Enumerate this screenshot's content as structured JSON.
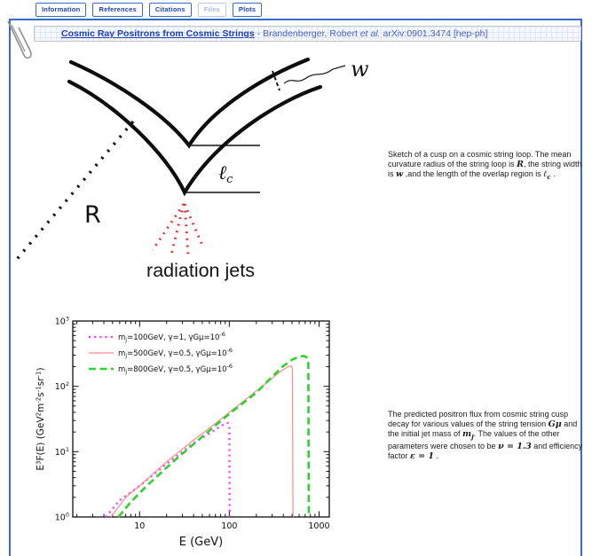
{
  "accent_color": "#3a6bc6",
  "tabs": [
    {
      "label": "Information",
      "state": "normal"
    },
    {
      "label": "References",
      "state": "normal"
    },
    {
      "label": "Citations",
      "state": "normal"
    },
    {
      "label": "Files",
      "state": "disabled"
    },
    {
      "label": "Plots",
      "state": "active"
    }
  ],
  "header": {
    "title_link": "Cosmic Ray Positrons from Cosmic Strings",
    "separator": " - ",
    "authors": "Brandenberger, Robert ",
    "etal": "et al.",
    "identifier": " arXiv:0901.3474 [hep-ph]"
  },
  "figure1": {
    "labels": {
      "R": "R",
      "w": "w",
      "ell": "ℓ",
      "ell_sub": "c",
      "jets": "radiation jets"
    },
    "caption_segments": [
      {
        "t": "Sketch of a cusp on a cosmic string loop. The mean curvature radius of the string loop is "
      },
      {
        "m": "R"
      },
      {
        "t": ", the string width is "
      },
      {
        "m": "w"
      },
      {
        "t": " ,and the length of the overlap region is "
      },
      {
        "m": "ℓ",
        "sub": "c"
      },
      {
        "t": " ."
      }
    ]
  },
  "figure2": {
    "caption_segments": [
      {
        "t": "The predicted positron flux from cosmic string cusp decay for various values of the string tension "
      },
      {
        "m": "Gμ"
      },
      {
        "t": " and the initial jet mass of "
      },
      {
        "m": "m",
        "sub": "j"
      },
      {
        "t": ". The values of the other parameters were chosen to be "
      },
      {
        "m": "ν = 1.3"
      },
      {
        "t": " and efficiency factor "
      },
      {
        "m": "ε = 1"
      },
      {
        "t": " ."
      }
    ]
  },
  "chart_data": {
    "type": "line",
    "title": "",
    "xlabel": "E  (GeV)",
    "ylabel_segments": [
      {
        "t": "E"
      },
      {
        "sup": "3"
      },
      {
        "t": "F(E)  (GeV"
      },
      {
        "sup": "2"
      },
      {
        "t": "m"
      },
      {
        "sup": "-2"
      },
      {
        "t": "s"
      },
      {
        "sup": "-1"
      },
      {
        "t": "sr"
      },
      {
        "sup": "-1"
      },
      {
        "t": ")"
      }
    ],
    "xscale": "log",
    "yscale": "log",
    "xlim": [
      1.8,
      1300
    ],
    "ylim": [
      1,
      1000
    ],
    "grid": false,
    "legend_position": "top-left",
    "xticks": [
      {
        "value": 10,
        "label": "10"
      },
      {
        "value": 100,
        "label": "100"
      },
      {
        "value": 1000,
        "label": "1000"
      }
    ],
    "ytick_base": "10",
    "yticks": [
      {
        "value": 1,
        "exp": "0"
      },
      {
        "value": 10,
        "exp": "1"
      },
      {
        "value": 100,
        "exp": "2"
      },
      {
        "value": 1000,
        "exp": "3"
      }
    ],
    "series": [
      {
        "name": "mj=100GeV, gamma=1, gammaGmu=1e-6",
        "style": "dotted",
        "color": "#ff2dff",
        "width": 2.2,
        "legend": {
          "pre": "m",
          "sub": "j",
          "mid": "=100GeV, γ=1, γGμ=10",
          "sup": "-6"
        },
        "points": [
          [
            4.2,
            1
          ],
          [
            6,
            1.8
          ],
          [
            10,
            3
          ],
          [
            20,
            6.5
          ],
          [
            40,
            13.5
          ],
          [
            60,
            19
          ],
          [
            80,
            24.5
          ],
          [
            90,
            27
          ],
          [
            96,
            27.5
          ],
          [
            100,
            25
          ],
          [
            101,
            1
          ]
        ]
      },
      {
        "name": "mj=500GeV, gamma=0.5, gammaGmu=1e-6",
        "style": "solid",
        "color": "#ff8a8a",
        "width": 1.2,
        "legend": {
          "pre": "m",
          "sub": "j",
          "mid": "=500GeV, γ=0.5, γGμ=10",
          "sup": "-6"
        },
        "points": [
          [
            4.8,
            1
          ],
          [
            7,
            2
          ],
          [
            10,
            3
          ],
          [
            20,
            7
          ],
          [
            40,
            15
          ],
          [
            70,
            27
          ],
          [
            100,
            40
          ],
          [
            150,
            62
          ],
          [
            200,
            85
          ],
          [
            300,
            133
          ],
          [
            380,
            172
          ],
          [
            450,
            200
          ],
          [
            490,
            205
          ],
          [
            505,
            185
          ],
          [
            512,
            1
          ]
        ]
      },
      {
        "name": "mj=800GeV, gamma=0.5, gammaGmu=1e-6",
        "style": "dashed",
        "color": "#2ed22e",
        "width": 2.6,
        "legend": {
          "pre": "m",
          "sub": "j",
          "mid": "=800GeV, γ=0.5, γGμ=10",
          "sup": "-6"
        },
        "points": [
          [
            5.8,
            1
          ],
          [
            8,
            1.7
          ],
          [
            12,
            3
          ],
          [
            25,
            7.5
          ],
          [
            50,
            17
          ],
          [
            100,
            38
          ],
          [
            200,
            80
          ],
          [
            300,
            140
          ],
          [
            400,
            205
          ],
          [
            500,
            255
          ],
          [
            600,
            285
          ],
          [
            680,
            292
          ],
          [
            730,
            275
          ],
          [
            760,
            220
          ],
          [
            768,
            1
          ]
        ]
      }
    ]
  }
}
